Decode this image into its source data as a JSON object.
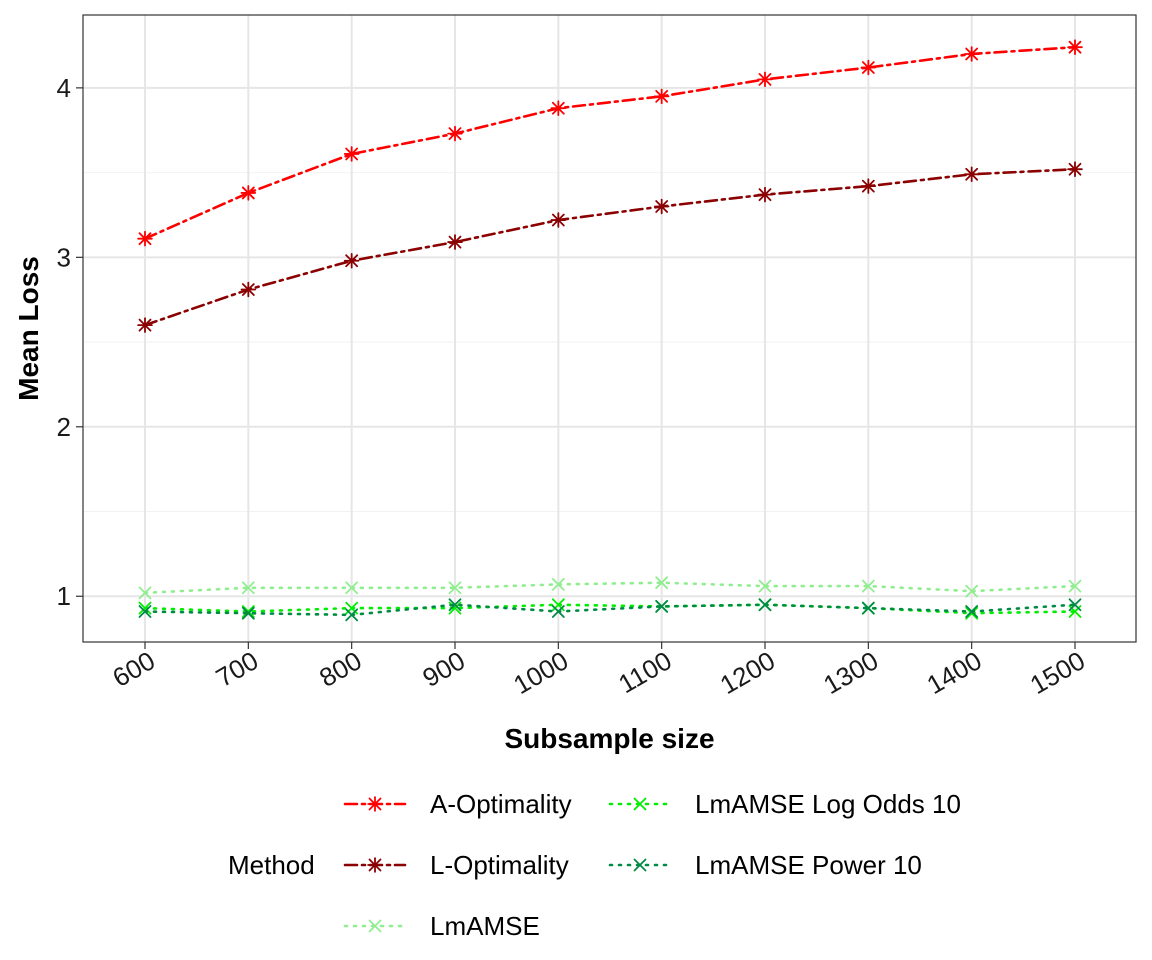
{
  "chart_data": {
    "type": "line",
    "xlabel": "Subsample size",
    "ylabel": "Mean Loss",
    "x": [
      600,
      700,
      800,
      900,
      1000,
      1100,
      1200,
      1300,
      1400,
      1500
    ],
    "x_ticks": [
      "600",
      "700",
      "800",
      "900",
      "1000",
      "1100",
      "1200",
      "1300",
      "1400",
      "1500"
    ],
    "y_ticks": [
      1,
      2,
      3,
      4
    ],
    "y_tick_labels": [
      "1",
      "2",
      "3",
      "4"
    ],
    "ylim": [
      0.73,
      4.43
    ],
    "grid": true,
    "legend_title": "Method",
    "legend_position": "bottom",
    "series": [
      {
        "name": "A-Optimality",
        "color": "#ff0000",
        "dash": "dashdot",
        "marker": "asterisk",
        "values": [
          3.11,
          3.38,
          3.61,
          3.73,
          3.88,
          3.95,
          4.05,
          4.12,
          4.2,
          4.24
        ]
      },
      {
        "name": "L-Optimality",
        "color": "#8b0000",
        "dash": "dashdot",
        "marker": "asterisk",
        "values": [
          2.6,
          2.81,
          2.98,
          3.09,
          3.22,
          3.3,
          3.37,
          3.42,
          3.49,
          3.52
        ]
      },
      {
        "name": "LmAMSE",
        "color": "#90ee90",
        "dash": "dotted",
        "marker": "x",
        "values": [
          1.02,
          1.05,
          1.05,
          1.05,
          1.07,
          1.08,
          1.06,
          1.06,
          1.03,
          1.06
        ]
      },
      {
        "name": "LmAMSE Log Odds 10",
        "color": "#00ee00",
        "dash": "dotted",
        "marker": "x",
        "values": [
          0.93,
          0.91,
          0.93,
          0.93,
          0.95,
          0.94,
          0.95,
          0.93,
          0.9,
          0.91
        ]
      },
      {
        "name": "LmAMSE Power 10",
        "color": "#008b45",
        "dash": "dotted",
        "marker": "x",
        "values": [
          0.91,
          0.9,
          0.89,
          0.95,
          0.91,
          0.94,
          0.95,
          0.93,
          0.91,
          0.95
        ]
      }
    ]
  }
}
